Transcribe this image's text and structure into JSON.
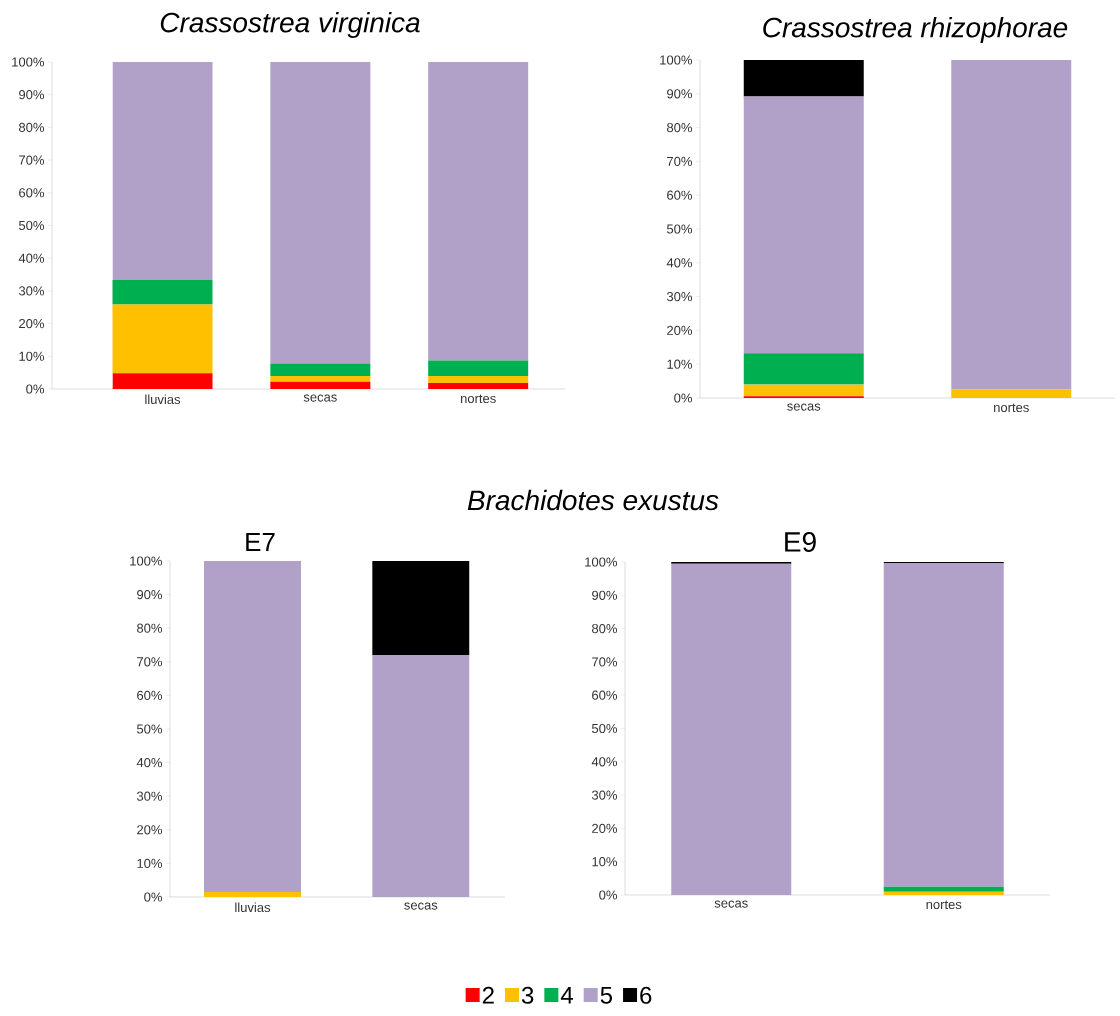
{
  "chart_data": [
    {
      "type": "bar",
      "title": "Crassostrea virginica",
      "categories": [
        "lluvias",
        "secas",
        "nortes"
      ],
      "stacked": true,
      "ylim": [
        0,
        100
      ],
      "yticks": [
        {
          "value": 0,
          "label": "0%"
        },
        {
          "value": 10,
          "label": "10%"
        },
        {
          "value": 20,
          "label": "20%"
        },
        {
          "value": 30,
          "label": "30%"
        },
        {
          "value": 40,
          "label": "40%"
        },
        {
          "value": 50,
          "label": "50%"
        },
        {
          "value": 60,
          "label": "60%"
        },
        {
          "value": 70,
          "label": "70%"
        },
        {
          "value": 80,
          "label": "80%"
        },
        {
          "value": 90,
          "label": "90%"
        },
        {
          "value": 100,
          "label": "100%"
        }
      ],
      "series": [
        {
          "color": "#ff0000",
          "values": [
            4.8,
            2.2,
            1.8
          ]
        },
        {
          "color": "#ffc000",
          "values": [
            21,
            1.8,
            2.2
          ]
        },
        {
          "color": "#00b050",
          "values": [
            7.5,
            3.8,
            4.7
          ]
        },
        {
          "color": "#b1a0c7",
          "values": [
            66.7,
            92.2,
            91.3
          ]
        },
        {
          "color": "#000000",
          "values": [
            0,
            0,
            0
          ]
        }
      ]
    },
    {
      "type": "bar",
      "title": "Crassostrea rhizophorae",
      "categories": [
        "secas",
        "nortes"
      ],
      "stacked": true,
      "ylim": [
        0,
        100
      ],
      "yticks": [
        {
          "value": 0,
          "label": "0%"
        },
        {
          "value": 10,
          "label": "10%"
        },
        {
          "value": 20,
          "label": "20%"
        },
        {
          "value": 30,
          "label": "30%"
        },
        {
          "value": 40,
          "label": "40%"
        },
        {
          "value": 50,
          "label": "50%"
        },
        {
          "value": 60,
          "label": "60%"
        },
        {
          "value": 70,
          "label": "70%"
        },
        {
          "value": 80,
          "label": "80%"
        },
        {
          "value": 90,
          "label": "90%"
        },
        {
          "value": 100,
          "label": "100%"
        }
      ],
      "series": [
        {
          "color": "#ff0000",
          "values": [
            0.5,
            0
          ]
        },
        {
          "color": "#ffc000",
          "values": [
            3.5,
            2.5
          ]
        },
        {
          "color": "#00b050",
          "values": [
            9.2,
            0
          ]
        },
        {
          "color": "#b1a0c7",
          "values": [
            76,
            97.5
          ]
        },
        {
          "color": "#000000",
          "values": [
            10.8,
            0
          ]
        }
      ]
    },
    {
      "type": "bar",
      "title": "Brachidotes exustus",
      "subtitle": "E7",
      "categories": [
        "lluvias",
        "secas"
      ],
      "stacked": true,
      "ylim": [
        0,
        100
      ],
      "yticks": [
        {
          "value": 0,
          "label": "0%"
        },
        {
          "value": 10,
          "label": "10%"
        },
        {
          "value": 20,
          "label": "20%"
        },
        {
          "value": 30,
          "label": "30%"
        },
        {
          "value": 40,
          "label": "40%"
        },
        {
          "value": 50,
          "label": "50%"
        },
        {
          "value": 60,
          "label": "60%"
        },
        {
          "value": 70,
          "label": "70%"
        },
        {
          "value": 80,
          "label": "80%"
        },
        {
          "value": 90,
          "label": "90%"
        },
        {
          "value": 100,
          "label": "100%"
        }
      ],
      "series": [
        {
          "color": "#ff0000",
          "values": [
            0,
            0
          ]
        },
        {
          "color": "#ffc000",
          "values": [
            1.5,
            0
          ]
        },
        {
          "color": "#00b050",
          "values": [
            0,
            0
          ]
        },
        {
          "color": "#b1a0c7",
          "values": [
            98.5,
            72
          ]
        },
        {
          "color": "#000000",
          "values": [
            0,
            28
          ]
        }
      ]
    },
    {
      "type": "bar",
      "title": "E9",
      "categories": [
        "secas",
        "nortes"
      ],
      "stacked": true,
      "legend": "bottom",
      "ylim": [
        0,
        100
      ],
      "yticks": [
        {
          "value": 0,
          "label": "0%"
        },
        {
          "value": 10,
          "label": "10%"
        },
        {
          "value": 20,
          "label": "20%"
        },
        {
          "value": 30,
          "label": "30%"
        },
        {
          "value": 40,
          "label": "40%"
        },
        {
          "value": 50,
          "label": "50%"
        },
        {
          "value": 60,
          "label": "60%"
        },
        {
          "value": 70,
          "label": "70%"
        },
        {
          "value": 80,
          "label": "80%"
        },
        {
          "value": 90,
          "label": "90%"
        },
        {
          "value": 100,
          "label": "100%"
        }
      ],
      "series": [
        {
          "name": "2",
          "color": "#ff0000",
          "values": [
            0,
            0
          ]
        },
        {
          "name": "3",
          "color": "#ffc000",
          "values": [
            0,
            1
          ]
        },
        {
          "name": "4",
          "color": "#00b050",
          "values": [
            0,
            1.5
          ]
        },
        {
          "name": "5",
          "color": "#b1a0c7",
          "values": [
            99.5,
            97.2
          ]
        },
        {
          "name": "6",
          "color": "#000000",
          "values": [
            0.5,
            0.3
          ]
        }
      ]
    }
  ]
}
